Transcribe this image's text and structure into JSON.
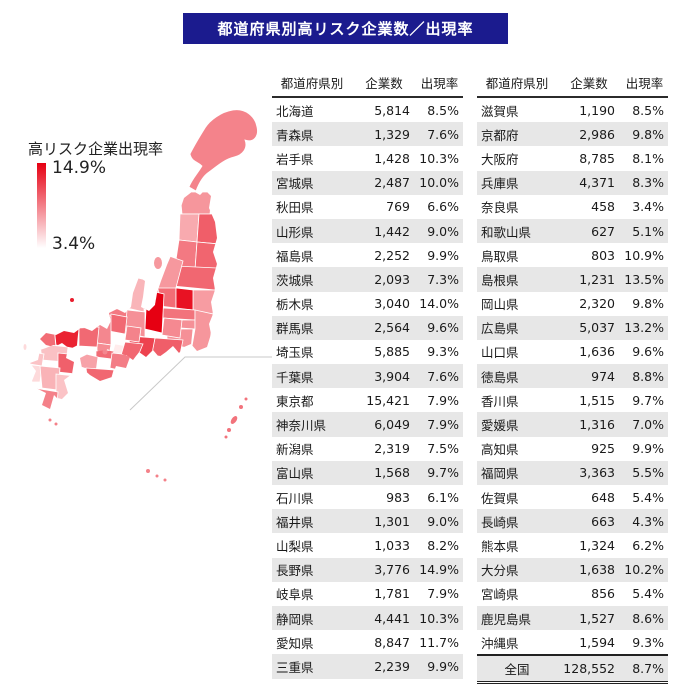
{
  "title": "都道府県別高リスク企業数／出現率",
  "colors": {
    "titlebar_bg": "#1b1b8e",
    "stripe": "#e7e7e7",
    "map_low": "#ffecec",
    "map_high": "#e60012",
    "inset_line": "#c9c9c9"
  },
  "legend": {
    "title": "高リスク企業出現率",
    "max_label": "14.9%",
    "min_label": "3.4%"
  },
  "chart_data": {
    "type": "heatmap",
    "subtype": "japan-prefecture-choropleth-with-tables",
    "title": "都道府県別高リスク企業数／出現率",
    "legend_label": "高リスク企業出現率",
    "value_range": [
      3.4,
      14.9
    ],
    "columns": [
      "都道府県別",
      "企業数",
      "出現率"
    ],
    "left_rows": [
      [
        "北海道",
        5814,
        8.5
      ],
      [
        "青森県",
        1329,
        7.6
      ],
      [
        "岩手県",
        1428,
        10.3
      ],
      [
        "宮城県",
        2487,
        10.0
      ],
      [
        "秋田県",
        769,
        6.6
      ],
      [
        "山形県",
        1442,
        9.0
      ],
      [
        "福島県",
        2252,
        9.9
      ],
      [
        "茨城県",
        2093,
        7.3
      ],
      [
        "栃木県",
        3040,
        14.0
      ],
      [
        "群馬県",
        2564,
        9.6
      ],
      [
        "埼玉県",
        5885,
        9.3
      ],
      [
        "千葉県",
        3904,
        7.6
      ],
      [
        "東京都",
        15421,
        7.9
      ],
      [
        "神奈川県",
        6049,
        7.9
      ],
      [
        "新潟県",
        2319,
        7.5
      ],
      [
        "富山県",
        1568,
        9.7
      ],
      [
        "石川県",
        983,
        6.1
      ],
      [
        "福井県",
        1301,
        9.0
      ],
      [
        "山梨県",
        1033,
        8.2
      ],
      [
        "長野県",
        3776,
        14.9
      ],
      [
        "岐阜県",
        1781,
        7.9
      ],
      [
        "静岡県",
        4441,
        10.3
      ],
      [
        "愛知県",
        8847,
        11.7
      ],
      [
        "三重県",
        2239,
        9.9
      ]
    ],
    "right_rows": [
      [
        "滋賀県",
        1190,
        8.5
      ],
      [
        "京都府",
        2986,
        9.8
      ],
      [
        "大阪府",
        8785,
        8.1
      ],
      [
        "兵庫県",
        4371,
        8.3
      ],
      [
        "奈良県",
        458,
        3.4
      ],
      [
        "和歌山県",
        627,
        5.1
      ],
      [
        "鳥取県",
        803,
        10.9
      ],
      [
        "島根県",
        1231,
        13.5
      ],
      [
        "岡山県",
        2320,
        9.8
      ],
      [
        "広島県",
        5037,
        13.2
      ],
      [
        "山口県",
        1636,
        9.6
      ],
      [
        "徳島県",
        974,
        8.8
      ],
      [
        "香川県",
        1515,
        9.7
      ],
      [
        "愛媛県",
        1316,
        7.0
      ],
      [
        "高知県",
        925,
        9.9
      ],
      [
        "福岡県",
        3363,
        5.5
      ],
      [
        "佐賀県",
        648,
        5.4
      ],
      [
        "長崎県",
        663,
        4.3
      ],
      [
        "熊本県",
        1324,
        6.2
      ],
      [
        "大分県",
        1638,
        10.2
      ],
      [
        "宮崎県",
        856,
        5.4
      ],
      [
        "鹿児島県",
        1527,
        8.6
      ],
      [
        "沖縄県",
        1594,
        9.3
      ]
    ],
    "total_row": [
      "全国",
      128552,
      8.7
    ]
  }
}
